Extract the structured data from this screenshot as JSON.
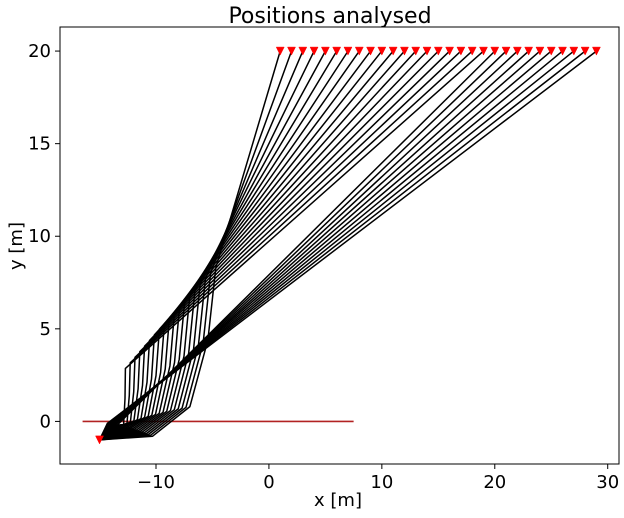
{
  "chart_data": {
    "type": "line",
    "title": "Positions analysed",
    "xlabel": "x [m]",
    "ylabel": "y [m]",
    "xlim": [
      -18.5,
      31
    ],
    "ylim": [
      -2.3,
      21.3
    ],
    "xticks": [
      -10,
      0,
      10,
      20,
      30
    ],
    "yticks": [
      0,
      5,
      10,
      15,
      20
    ],
    "xtick_labels": [
      "−10",
      "0",
      "10",
      "20",
      "30"
    ],
    "ytick_labels": [
      "0",
      "5",
      "10",
      "15",
      "20"
    ],
    "grid": false,
    "source": {
      "x": -15,
      "y": -1,
      "marker": "triangle-down",
      "color": "#ff0000"
    },
    "receivers": {
      "y": 20,
      "x": [
        1,
        2,
        3,
        4,
        5,
        6,
        7,
        8,
        9,
        10,
        11,
        12,
        13,
        14,
        15,
        16,
        17,
        18,
        19,
        20,
        21,
        22,
        23,
        24,
        25,
        26,
        27,
        28,
        29
      ],
      "marker": "triangle-down",
      "color": "#ff0000"
    },
    "interface_line": {
      "x": [
        -16.5,
        7.5
      ],
      "y": [
        0,
        0
      ],
      "color": "#b22222"
    },
    "ray_color": "#000000",
    "ray_note": "one refracted ray path from the source to each receiver"
  }
}
